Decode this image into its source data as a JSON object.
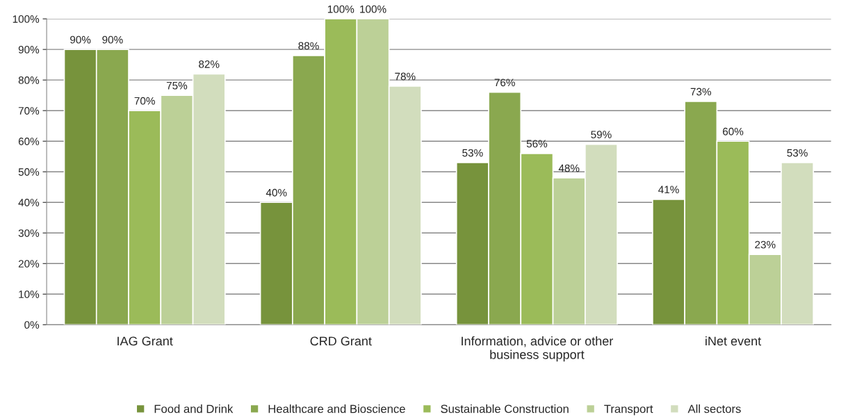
{
  "chart_data": {
    "type": "bar",
    "categories": [
      "IAG Grant",
      "CRD Grant",
      "Information, advice or other\nbusiness support",
      "iNet event"
    ],
    "series": [
      {
        "name": "Food and Drink",
        "color": "#77933c",
        "values": [
          90,
          40,
          53,
          41
        ],
        "value_labels": [
          "90%",
          "40%",
          "53%",
          "41%"
        ]
      },
      {
        "name": "Healthcare and Bioscience",
        "color": "#8aa84f",
        "values": [
          90,
          88,
          76,
          73
        ],
        "value_labels": [
          "90%",
          "88%",
          "76%",
          "73%"
        ]
      },
      {
        "name": "Sustainable Construction",
        "color": "#9bbb59",
        "values": [
          70,
          100,
          56,
          60
        ],
        "value_labels": [
          "70%",
          "100%",
          "56%",
          "60%"
        ]
      },
      {
        "name": "Transport",
        "color": "#bcd097",
        "values": [
          75,
          100,
          48,
          23
        ],
        "value_labels": [
          "75%",
          "100%",
          "48%",
          "23%"
        ]
      },
      {
        "name": "All sectors",
        "color": "#d2ddbd",
        "values": [
          82,
          78,
          59,
          53
        ],
        "value_labels": [
          "82%",
          "78%",
          "59%",
          "53%"
        ]
      }
    ],
    "ylim": [
      0,
      100
    ],
    "yticks": [
      {
        "value": 0,
        "label": "0%"
      },
      {
        "value": 10,
        "label": "10%"
      },
      {
        "value": 20,
        "label": "20%"
      },
      {
        "value": 30,
        "label": "30%"
      },
      {
        "value": 40,
        "label": "40%"
      },
      {
        "value": 50,
        "label": "50%"
      },
      {
        "value": 60,
        "label": "60%"
      },
      {
        "value": 70,
        "label": "70%"
      },
      {
        "value": 80,
        "label": "80%"
      },
      {
        "value": 90,
        "label": "90%"
      },
      {
        "value": 100,
        "label": "100%"
      }
    ],
    "grid": "y",
    "legend": "bottom"
  }
}
